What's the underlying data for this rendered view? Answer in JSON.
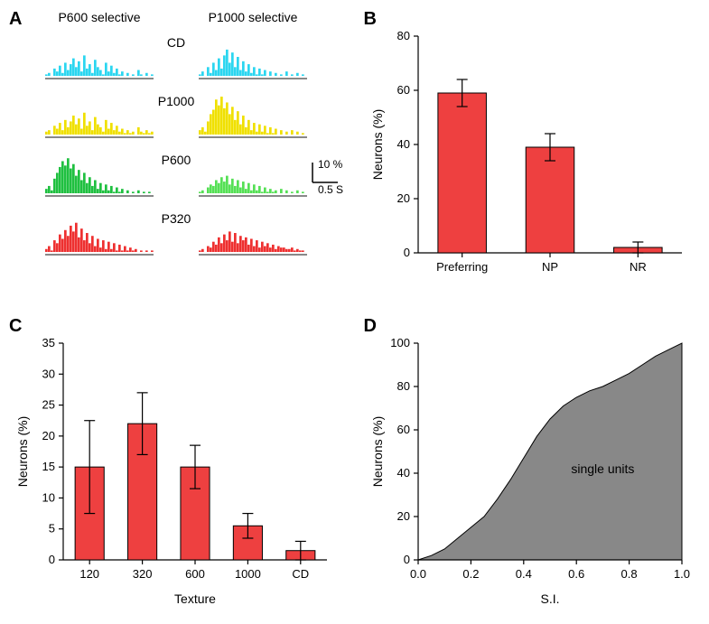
{
  "panelA": {
    "label": "A",
    "left_header": "P600 selective",
    "right_header": "P1000 selective",
    "row_labels": [
      "CD",
      "P1000",
      "P600",
      "P320"
    ],
    "row_colors": [
      "#2bd6f0",
      "#f0e000",
      "#1fc040",
      "#ee3030"
    ],
    "alt_colors": {
      "P600_right": "#55e055"
    },
    "scale_y_label": "10 %",
    "scale_x_label": "0.5 S",
    "psth_left": [
      [
        1,
        2,
        0,
        5,
        3,
        7,
        2,
        9,
        4,
        8,
        12,
        6,
        10,
        3,
        14,
        5,
        8,
        2,
        11,
        6,
        4,
        1,
        9,
        3,
        7,
        2,
        5,
        1,
        3,
        0,
        2,
        0,
        1,
        0,
        4,
        1,
        0,
        2,
        0,
        1
      ],
      [
        2,
        3,
        0,
        6,
        4,
        8,
        3,
        10,
        5,
        9,
        13,
        7,
        11,
        4,
        15,
        6,
        9,
        3,
        12,
        7,
        5,
        2,
        10,
        4,
        8,
        3,
        6,
        2,
        4,
        1,
        3,
        1,
        2,
        0,
        5,
        2,
        1,
        3,
        1,
        2
      ],
      [
        3,
        5,
        2,
        10,
        14,
        18,
        22,
        19,
        24,
        17,
        20,
        12,
        16,
        9,
        14,
        7,
        11,
        5,
        9,
        3,
        7,
        2,
        6,
        2,
        5,
        1,
        4,
        1,
        3,
        0,
        2,
        0,
        1,
        0,
        2,
        0,
        1,
        0,
        1,
        0
      ],
      [
        2,
        4,
        1,
        8,
        6,
        12,
        9,
        15,
        11,
        18,
        14,
        20,
        10,
        16,
        8,
        13,
        6,
        11,
        4,
        9,
        3,
        8,
        2,
        7,
        2,
        6,
        1,
        5,
        1,
        4,
        1,
        3,
        1,
        2,
        0,
        1,
        0,
        1,
        0,
        1
      ]
    ],
    "psth_right": [
      [
        1,
        3,
        0,
        6,
        2,
        9,
        4,
        12,
        5,
        14,
        18,
        9,
        16,
        6,
        13,
        4,
        10,
        3,
        8,
        2,
        6,
        1,
        5,
        1,
        4,
        0,
        3,
        0,
        2,
        0,
        1,
        0,
        3,
        0,
        1,
        0,
        2,
        0,
        1,
        0
      ],
      [
        3,
        5,
        2,
        9,
        14,
        17,
        24,
        20,
        26,
        18,
        22,
        14,
        19,
        10,
        16,
        7,
        13,
        5,
        10,
        3,
        8,
        2,
        7,
        2,
        6,
        1,
        5,
        1,
        4,
        0,
        3,
        0,
        2,
        0,
        3,
        0,
        2,
        0,
        1,
        0
      ],
      [
        1,
        2,
        0,
        4,
        6,
        5,
        9,
        7,
        11,
        8,
        12,
        6,
        10,
        5,
        9,
        4,
        8,
        3,
        7,
        2,
        6,
        2,
        5,
        1,
        4,
        1,
        3,
        1,
        2,
        0,
        3,
        0,
        2,
        0,
        1,
        0,
        2,
        0,
        1,
        0
      ],
      [
        1,
        2,
        0,
        4,
        3,
        7,
        5,
        10,
        6,
        12,
        8,
        14,
        7,
        13,
        6,
        11,
        8,
        10,
        5,
        9,
        4,
        8,
        3,
        7,
        4,
        6,
        3,
        5,
        2,
        4,
        3,
        3,
        2,
        2,
        3,
        1,
        2,
        1,
        1,
        0
      ]
    ],
    "psth_maxnorm": 26
  },
  "panelB": {
    "label": "B",
    "ylabel": "Neurons (%)",
    "ylim": [
      0,
      80
    ],
    "ytick_step": 20,
    "categories": [
      "Preferring",
      "NP",
      "NR"
    ],
    "values": [
      59,
      39,
      2
    ],
    "err": [
      5,
      5,
      2
    ],
    "bar_color": "#ee4040"
  },
  "panelC": {
    "label": "C",
    "ylabel": "Neurons (%)",
    "xlabel": "Texture",
    "ylim": [
      0,
      35
    ],
    "yticks": [
      0,
      5,
      10,
      15,
      20,
      25,
      30,
      35
    ],
    "categories": [
      "120",
      "320",
      "600",
      "1000",
      "CD"
    ],
    "values": [
      15,
      22,
      15,
      5.5,
      1.5
    ],
    "err": [
      7.5,
      5,
      3.5,
      2,
      1.5
    ],
    "bar_color": "#ee4040"
  },
  "panelD": {
    "label": "D",
    "ylabel": "Neurons (%)",
    "xlabel": "S.I.",
    "ylim": [
      0,
      100
    ],
    "ytick_step": 20,
    "xlim": [
      0.0,
      1.0
    ],
    "xtick_step": 0.2,
    "annotation": "single units",
    "curve_x": [
      0.0,
      0.05,
      0.1,
      0.15,
      0.2,
      0.25,
      0.3,
      0.35,
      0.4,
      0.45,
      0.5,
      0.55,
      0.6,
      0.65,
      0.7,
      0.75,
      0.8,
      0.85,
      0.9,
      0.95,
      1.0
    ],
    "curve_y": [
      0,
      2,
      5,
      10,
      15,
      20,
      28,
      37,
      47,
      57,
      65,
      71,
      75,
      78,
      80,
      83,
      86,
      90,
      94,
      97,
      100
    ],
    "area_color": "#888888"
  }
}
